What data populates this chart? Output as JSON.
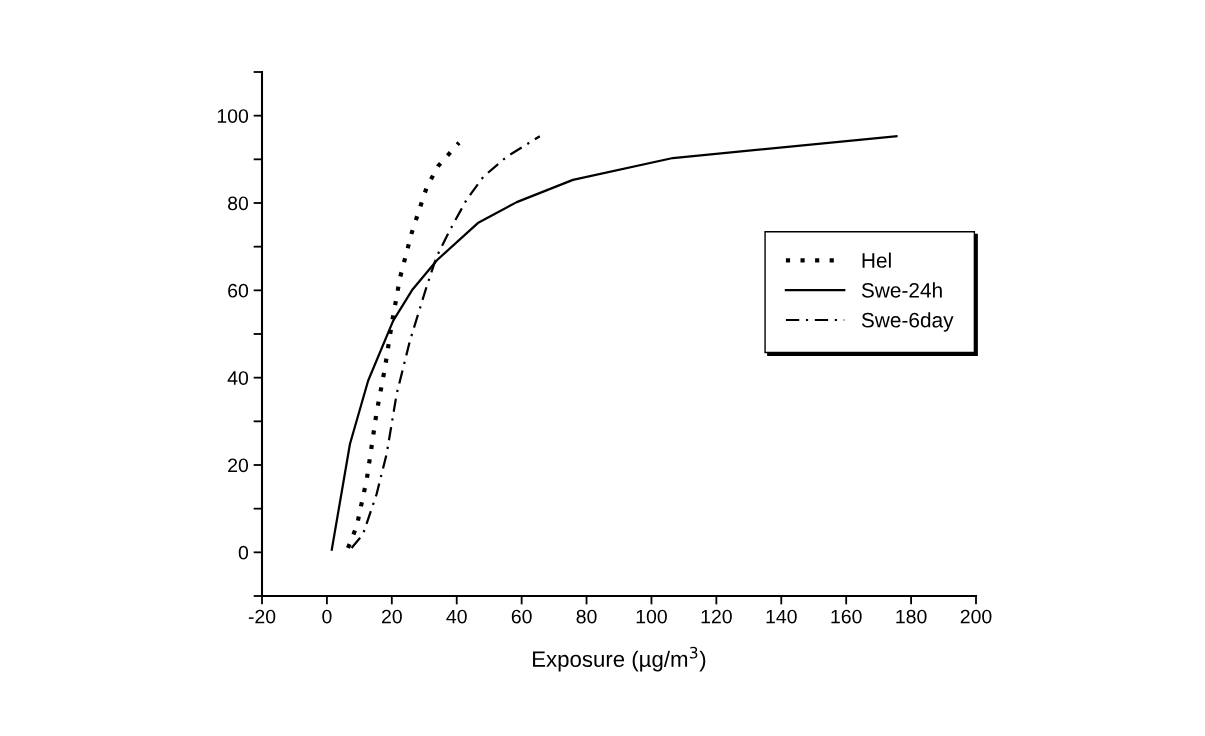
{
  "chart_data": {
    "type": "line",
    "xlabel": "Exposure (µg/m$^{3}$)",
    "xlim": [
      -20,
      200
    ],
    "xticks": [
      -20,
      0,
      20,
      40,
      60,
      80,
      100,
      120,
      140,
      160,
      180,
      200
    ],
    "ylim": [
      -10,
      110
    ],
    "yticks": [
      {
        "value": -10,
        "label": null
      },
      0,
      {
        "value": 10,
        "label": null
      },
      20,
      {
        "value": 30,
        "label": null
      },
      40,
      {
        "value": 50,
        "label": null
      },
      60,
      {
        "value": 70,
        "label": null
      },
      80,
      {
        "value": 90,
        "label": null
      },
      100,
      {
        "value": 110,
        "label": null
      }
    ],
    "grid": false,
    "legend": "right",
    "marker": "none",
    "series": [
      {
        "name": "Hel",
        "color": "#000000",
        "line_style": "dotted",
        "x": [
          6.5,
          9.2,
          12.3,
          15.3,
          17.9,
          20,
          22.5,
          26.1,
          30.7,
          34.2,
          40.7
        ],
        "values": [
          1,
          6,
          16.8,
          32,
          42.3,
          52.4,
          62.8,
          73.1,
          83.5,
          88.4,
          93.8
        ]
      },
      {
        "name": "Swe-24h",
        "color": "#000000",
        "line_style": "solid",
        "x": [
          1.5,
          7.1,
          12.7,
          20.4,
          26.2,
          33.9,
          46.5,
          58.5,
          75.8,
          106.6,
          175.5
        ],
        "values": [
          0.6,
          24.8,
          39.3,
          53,
          60,
          66.9,
          75.4,
          80.2,
          85.3,
          90.3,
          95.3
        ]
      },
      {
        "name": "Swe-6day",
        "color": "#000000",
        "line_style": "dashdot",
        "x": [
          7.6,
          11.1,
          15.3,
          18.4,
          21.5,
          25.6,
          30.7,
          33.8,
          37.9,
          43,
          48.2,
          55.4,
          65.6
        ],
        "values": [
          1,
          4.1,
          13.3,
          22.5,
          36.3,
          48.5,
          60.8,
          67.7,
          73.8,
          80.7,
          86,
          90.6,
          95.3
        ]
      }
    ]
  }
}
